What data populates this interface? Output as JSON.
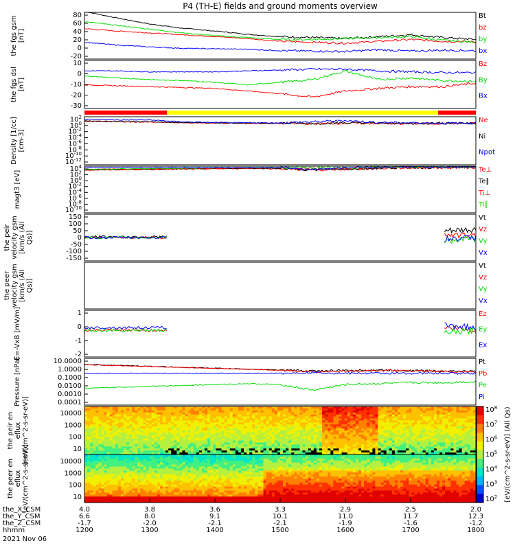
{
  "title": "P4 (TH-E) fields and ground moments overview",
  "colors": {
    "black": "#000000",
    "red": "#ff0000",
    "green": "#00dd00",
    "blue": "#0000ff",
    "yellow": "#ffff00"
  },
  "colorbar": {
    "label": "[eV/(cm^2-s-sr-eV)] (All Qs)",
    "ticks": [
      "10^8",
      "10^7",
      "10^6",
      "10^5",
      "10^4",
      "10^3",
      "10^2"
    ]
  },
  "flux_labels": [
    "eV/(cm^2-s-sr-eV)",
    "eV/(cm^2-s-sr-eV)"
  ],
  "orbit": {
    "rows": [
      {
        "label": "the_X_CSM",
        "values": [
          "4.0",
          "3.8",
          "3.6",
          "3.3",
          "2.9",
          "2.5",
          "2.0"
        ]
      },
      {
        "label": "the_Y_CSM",
        "values": [
          "6.6",
          "8.0",
          "9.1",
          "10.1",
          "11.0",
          "11.7",
          "12.3"
        ]
      },
      {
        "label": "the_Z_CSM",
        "values": [
          "-1.7",
          "-2.0",
          "-2.1",
          "-2.1",
          "-1.9",
          "-1.6",
          "-1.2"
        ]
      },
      {
        "label": "hhmm",
        "values": [
          "1200",
          "1300",
          "1400",
          "1500",
          "1600",
          "1700",
          "1800"
        ]
      }
    ],
    "date": "2021 Nov 06"
  },
  "chart_data": [
    {
      "type": "line",
      "ylabel": "the fgs gsm [nT]",
      "ylim": [
        -20,
        80
      ],
      "ticks": [
        "80",
        "60",
        "40",
        "20",
        "0",
        "-20"
      ],
      "series": [
        {
          "name": "Bt",
          "color": "black",
          "values": [
            82,
            68,
            55,
            46,
            40,
            33,
            28,
            26,
            24,
            28,
            32,
            26,
            22
          ]
        },
        {
          "name": "bz",
          "color": "red",
          "values": [
            45,
            40,
            36,
            32,
            28,
            24,
            18,
            16,
            14,
            18,
            22,
            18,
            17
          ]
        },
        {
          "name": "by",
          "color": "green",
          "values": [
            60,
            52,
            44,
            36,
            30,
            26,
            22,
            22,
            24,
            26,
            28,
            20,
            16
          ]
        },
        {
          "name": "bx",
          "color": "blue",
          "values": [
            16,
            10,
            6,
            3,
            2,
            1,
            -2,
            -3,
            -4,
            0,
            -3,
            -1,
            -2
          ]
        }
      ]
    },
    {
      "type": "line",
      "ylabel": "the fgs dsl [nT]",
      "ylim": [
        -35,
        20
      ],
      "ticks": [
        "10",
        "0",
        "-10",
        "-20",
        "-30"
      ],
      "series": [
        {
          "name": "Bz",
          "color": "red",
          "values": [
            -8,
            -9,
            -10,
            -11,
            -12,
            -15,
            -18,
            -22,
            -15,
            -12,
            -10,
            -10,
            -6
          ]
        },
        {
          "name": "By",
          "color": "green",
          "values": [
            2,
            0,
            -2,
            -3,
            -5,
            -8,
            -5,
            -2,
            8,
            -2,
            0,
            -3,
            -4
          ]
        },
        {
          "name": "Bx",
          "color": "blue",
          "values": [
            8,
            8,
            7,
            7,
            7,
            8,
            9,
            10,
            10,
            8,
            7,
            6,
            6
          ]
        }
      ]
    },
    {
      "type": "line",
      "ylabel": "Density [1/cc] [cm-3]",
      "ylim": [
        -12,
        3
      ],
      "ticks": [
        "10^2",
        "10^0",
        "10^-2",
        "10^-4",
        "10^-6",
        "10^-8",
        "10^-10",
        "10^-12"
      ],
      "series": [
        {
          "name": "Ne",
          "color": "red",
          "values": [
            1.6,
            1.4,
            1.3,
            1.1,
            1.0,
            0.9,
            0.9,
            0.8,
            1.0,
            0.9,
            0.8,
            0.9,
            0.9
          ]
        },
        {
          "name": "Ni",
          "color": "black",
          "values": [
            1.7,
            1.5,
            1.4,
            1.2,
            1.1,
            1.0,
            1.0,
            0.9,
            1.1,
            1.0,
            0.9,
            1.0,
            1.0
          ]
        },
        {
          "name": "Npot",
          "color": "blue",
          "values": [
            2.2,
            2.0,
            2.0,
            1.4,
            1.2,
            1.1,
            1.1,
            1.4,
            1.8,
            1.2,
            1.1,
            1.0,
            1.0
          ]
        }
      ]
    },
    {
      "type": "line",
      "ylabel": "magt3 [eV]",
      "ylim": [
        -10,
        4
      ],
      "ticks": [
        "10^4",
        "10^2",
        "10^0",
        "10^-2",
        "10^-4",
        "10^-6",
        "10^-8",
        "10^-10"
      ],
      "series": [
        {
          "name": "Te⊥",
          "color": "red",
          "values": [
            2.8,
            2.9,
            3.0,
            3.1,
            3.2,
            3.3,
            3.2,
            2.8,
            3.0,
            3.3,
            3.5,
            3.5,
            3.6
          ]
        },
        {
          "name": "Te∥",
          "color": "black",
          "values": [
            2.9,
            3.0,
            3.1,
            3.2,
            3.3,
            3.4,
            3.3,
            2.9,
            3.1,
            3.4,
            3.6,
            3.6,
            3.7
          ]
        },
        {
          "name": "Ti⊥",
          "color": "red",
          "values": [
            3.0,
            3.1,
            3.2,
            3.3,
            3.4,
            3.5,
            3.5,
            3.3,
            3.4,
            3.6,
            3.7,
            3.7,
            3.8
          ]
        },
        {
          "name": "Ti∥",
          "color": "green",
          "values": [
            3.1,
            3.2,
            3.3,
            3.4,
            3.5,
            3.6,
            3.6,
            3.5,
            3.5,
            3.7,
            3.8,
            3.8,
            3.8
          ]
        },
        {
          "name": "Npot",
          "color": "blue",
          "values": [
            3.6,
            3.6,
            3.6,
            3.6,
            3.6,
            3.6,
            3.6,
            3.0,
            3.6,
            3.7,
            3.8,
            3.8,
            3.8
          ]
        }
      ]
    },
    {
      "type": "line",
      "ylabel": "the peir velocity gsm [km/s (All Qs)]",
      "ylim": [
        -150,
        150
      ],
      "ticks": [
        "150",
        "100",
        "50",
        "0",
        "-50",
        "-100",
        "-150"
      ],
      "coverage": [
        [
          0,
          0.21
        ],
        [
          0.92,
          1
        ]
      ],
      "series": [
        {
          "name": "Vt",
          "color": "black",
          "values": [
            5,
            5,
            5,
            5,
            5,
            5,
            5,
            5,
            5,
            5,
            5,
            40,
            50
          ]
        },
        {
          "name": "Vz",
          "color": "red",
          "values": [
            0,
            0,
            0,
            0,
            0,
            0,
            0,
            0,
            0,
            0,
            0,
            20,
            10
          ]
        },
        {
          "name": "Vy",
          "color": "green",
          "values": [
            0,
            0,
            0,
            0,
            0,
            0,
            0,
            0,
            0,
            0,
            0,
            -20,
            -10
          ]
        },
        {
          "name": "Vx",
          "color": "blue",
          "values": [
            0,
            0,
            0,
            0,
            0,
            0,
            0,
            0,
            0,
            0,
            0,
            -10,
            0
          ]
        }
      ]
    },
    {
      "type": "line",
      "ylabel": "the peer velocity gsm [km/s (All Qs)]",
      "ylim": [
        -150,
        150
      ],
      "ticks": [],
      "series": [
        {
          "name": "Vt",
          "color": "black",
          "values": []
        },
        {
          "name": "Vz",
          "color": "red",
          "values": []
        },
        {
          "name": "Vy",
          "color": "green",
          "values": []
        },
        {
          "name": "Vx",
          "color": "blue",
          "values": []
        }
      ]
    },
    {
      "type": "line",
      "ylabel": "E=-VxB [mV/m]",
      "ylim": [
        -2,
        1.5
      ],
      "ticks": [
        "1",
        "0",
        "-1",
        "-2"
      ],
      "coverage": [
        [
          0,
          0.21
        ],
        [
          0.92,
          1
        ]
      ],
      "series": [
        {
          "name": "Ez",
          "color": "red",
          "values": [
            0,
            0,
            0,
            0,
            0,
            0,
            0,
            0,
            0,
            0,
            0,
            0.2,
            0
          ]
        },
        {
          "name": "Ey",
          "color": "green",
          "values": [
            0,
            0,
            0,
            0,
            0,
            0,
            0,
            0,
            0,
            0,
            0,
            -0.2,
            0
          ]
        },
        {
          "name": "Ex",
          "color": "blue",
          "values": [
            0.2,
            0.2,
            0.2,
            0.2,
            0.2,
            0.2,
            0.2,
            0.2,
            0.2,
            0.2,
            0.2,
            0.4,
            0.2
          ]
        }
      ]
    },
    {
      "type": "line",
      "ylabel": "Pressure [nPa]",
      "ylim": [
        -4,
        1
      ],
      "ticks": [
        "10.0000",
        "1.0000",
        "0.1000",
        "0.0100",
        "0.0010",
        "0.0001"
      ],
      "series": [
        {
          "name": "Pt",
          "color": "black",
          "values": [
            0.35,
            0.25,
            0.15,
            0.05,
            -0.05,
            -0.15,
            -0.25,
            -0.35,
            -0.3,
            -0.25,
            -0.3,
            -0.35,
            -0.4
          ]
        },
        {
          "name": "Pb",
          "color": "red",
          "values": [
            0.33,
            0.23,
            0.13,
            0.03,
            -0.07,
            -0.17,
            -0.27,
            -0.45,
            -0.35,
            -0.3,
            -0.35,
            -0.4,
            -0.45
          ]
        },
        {
          "name": "Pe",
          "color": "green",
          "values": [
            -2.2,
            -2.1,
            -2.0,
            -1.9,
            -1.8,
            -1.7,
            -1.8,
            -2.4,
            -1.8,
            -1.7,
            -1.6,
            -1.6,
            -1.5
          ]
        },
        {
          "name": "Pi",
          "color": "blue",
          "values": [
            -0.6,
            -0.6,
            -0.6,
            -0.6,
            -0.6,
            -0.6,
            -0.6,
            -0.5,
            -0.6,
            -0.6,
            -0.6,
            -0.6,
            -0.6
          ]
        }
      ]
    },
    {
      "type": "heatmap",
      "ylabel": "the peir en eflux [eV/(cm^2-s-sr-eV)]",
      "ylim": [
        5,
        20000
      ],
      "ticks": [
        "10000",
        "1000",
        "100",
        "10"
      ]
    },
    {
      "type": "heatmap",
      "ylabel": "the peer en eflux [eV/(cm^2-s-sr-eV)]",
      "ylim": [
        5,
        20000
      ],
      "ticks": [
        "10000",
        "1000",
        "100",
        "10"
      ]
    }
  ],
  "legends": [
    [
      "Bt",
      "bz",
      "by",
      "bx"
    ],
    [
      "Bz",
      "By",
      "Bx"
    ],
    [
      "Ne",
      "Ni",
      "Npot"
    ],
    [
      "Te⊥",
      "Te∥",
      "Ti⊥",
      "Ti∥"
    ],
    [
      "Vt",
      "Vz",
      "Vy",
      "Vx"
    ],
    [
      "Vt",
      "Vz",
      "Vy",
      "Vx"
    ],
    [
      "Ez",
      "Ey",
      "Ex"
    ],
    [
      "Pt",
      "Pb",
      "Pe",
      "Pi"
    ]
  ],
  "legend_colors": [
    [
      "black",
      "red",
      "green",
      "blue"
    ],
    [
      "red",
      "green",
      "blue"
    ],
    [
      "red",
      "black",
      "blue"
    ],
    [
      "red",
      "black",
      "red",
      "green"
    ],
    [
      "black",
      "red",
      "green",
      "blue"
    ],
    [
      "black",
      "red",
      "green",
      "blue"
    ],
    [
      "red",
      "green",
      "blue"
    ],
    [
      "black",
      "red",
      "green",
      "blue"
    ]
  ]
}
